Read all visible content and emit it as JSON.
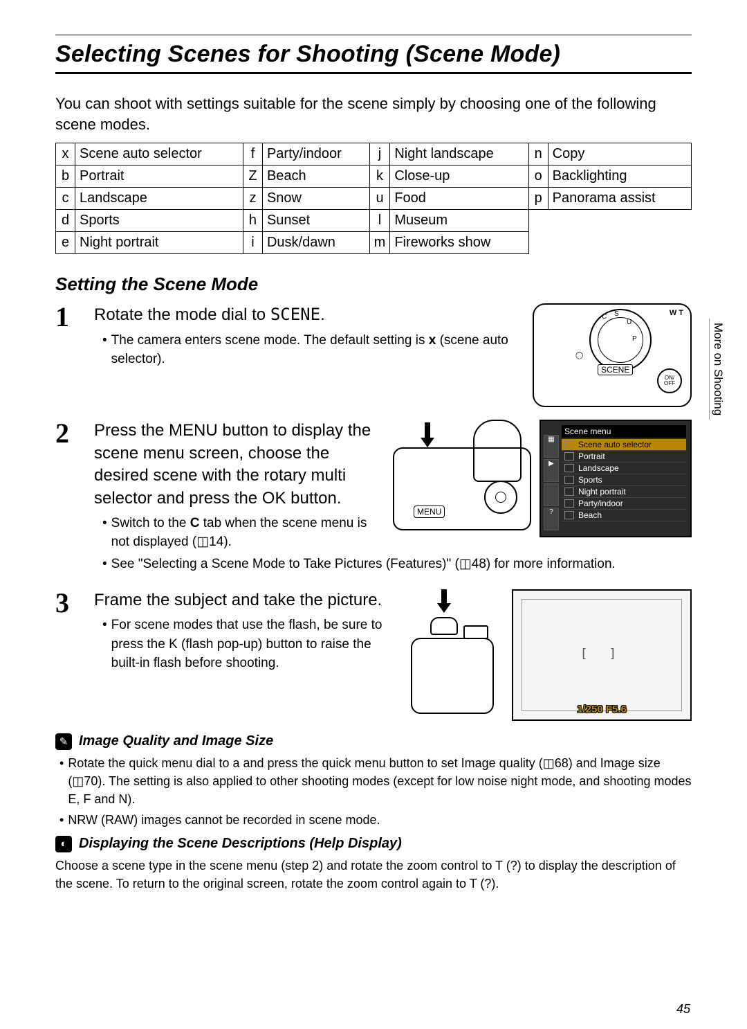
{
  "page": {
    "title": "Selecting Scenes for Shooting (Scene Mode)",
    "intro": "You can shoot with settings suitable for the scene simply by choosing one of the following scene modes.",
    "subtitle": "Setting the Scene Mode",
    "side_tab": "More on Shooting",
    "page_number": "45"
  },
  "scene_table": {
    "rows": [
      [
        {
          "code": "x",
          "label": "Scene auto selector"
        },
        {
          "code": "f",
          "label": "Party/indoor"
        },
        {
          "code": "j",
          "label": "Night landscape"
        },
        {
          "code": "n",
          "label": "Copy"
        }
      ],
      [
        {
          "code": "b",
          "label": "Portrait"
        },
        {
          "code": "Z",
          "label": "Beach"
        },
        {
          "code": "k",
          "label": "Close-up"
        },
        {
          "code": "o",
          "label": "Backlighting"
        }
      ],
      [
        {
          "code": "c",
          "label": "Landscape"
        },
        {
          "code": "z",
          "label": "Snow"
        },
        {
          "code": "u",
          "label": "Food"
        },
        {
          "code": "p",
          "label": "Panorama assist"
        }
      ],
      [
        {
          "code": "d",
          "label": "Sports"
        },
        {
          "code": "h",
          "label": "Sunset"
        },
        {
          "code": "l",
          "label": "Museum"
        },
        {
          "code": "",
          "label": ""
        }
      ],
      [
        {
          "code": "e",
          "label": "Night portrait"
        },
        {
          "code": "i",
          "label": "Dusk/dawn"
        },
        {
          "code": "m",
          "label": "Fireworks show"
        },
        {
          "code": "",
          "label": ""
        }
      ]
    ]
  },
  "steps": {
    "s1": {
      "num": "1",
      "heading_a": "Rotate the mode dial to ",
      "heading_b": "SCENE",
      "heading_c": ".",
      "bullet1_a": "The camera enters scene mode. The default setting is ",
      "bullet1_b": "x",
      "bullet1_c": " (scene auto selector).",
      "dial_label": "SCENE",
      "onoff": "ON/\nOFF",
      "wt": "W\nT"
    },
    "s2": {
      "num": "2",
      "heading": "Press the MENU button to display the scene menu screen, choose the desired scene with the rotary multi selector and press the OK button.",
      "bullet1_a": "Switch to the ",
      "bullet1_b": "C",
      "bullet1_c": " tab when the scene menu is not displayed (◫14).",
      "bullet2": "See \"Selecting a Scene Mode to Take Pictures (Features)\" (◫48) for more information.",
      "menu_btn": "MENU",
      "lcd": {
        "title": "Scene menu",
        "items": [
          "Scene auto selector",
          "Portrait",
          "Landscape",
          "Sports",
          "Night portrait",
          "Party/indoor",
          "Beach"
        ]
      }
    },
    "s3": {
      "num": "3",
      "heading": "Frame the subject and take the picture.",
      "bullet1": "For scene modes that use the flash, be sure to press the K (flash pop-up) button to raise the built-in flash before shooting.",
      "vf": {
        "focus": "[   ]",
        "readout": "1/250   F5.6"
      }
    }
  },
  "notes": {
    "n1": {
      "icon": "✎",
      "title": "Image Quality and Image Size",
      "bullet1": "Rotate the quick menu dial to a and press the quick menu button to set Image quality (◫68) and Image size (◫70). The setting is also applied to other shooting modes (except for low noise night mode, and shooting modes E, F and N).",
      "bullet2": "NRW (RAW) images cannot be recorded in scene mode."
    },
    "n2": {
      "icon": "◐",
      "title": "Displaying the Scene Descriptions (Help Display)",
      "body": "Choose a scene type in the scene menu (step 2) and rotate the zoom control to T (?) to display the description of the scene. To return to the original screen, rotate the zoom control again to T (?)."
    }
  }
}
